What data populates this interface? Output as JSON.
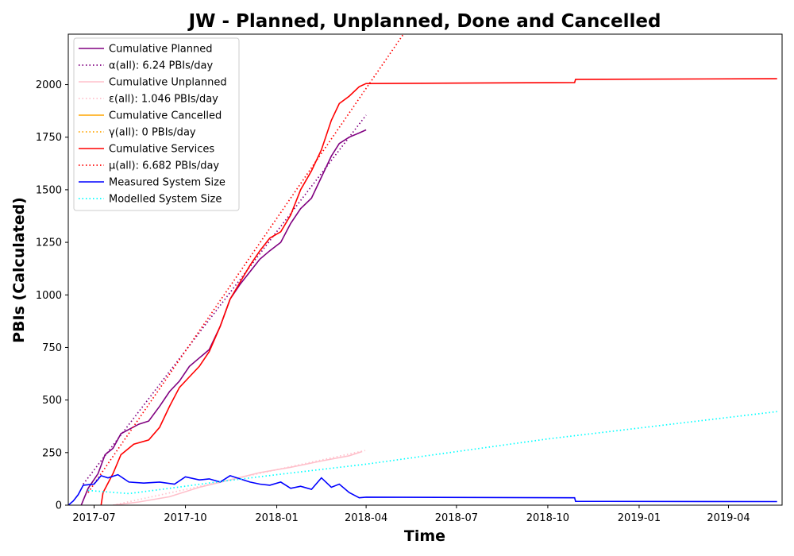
{
  "chart_data": {
    "type": "line",
    "title": "JW - Planned, Unplanned, Done  and Cancelled",
    "xlabel": "Time",
    "ylabel": "PBIs (Calculated)",
    "xlim": [
      "2017-06-05",
      "2019-05-25"
    ],
    "ylim": [
      0,
      2240
    ],
    "x_ticks": [
      "2017-07",
      "2017-10",
      "2018-01",
      "2018-04",
      "2018-07",
      "2018-10",
      "2019-01",
      "2019-04"
    ],
    "y_ticks": [
      0,
      250,
      500,
      750,
      1000,
      1250,
      1500,
      1750,
      2000
    ],
    "grid": false,
    "legend_position": "top-left",
    "series": [
      {
        "name": "Cumulative Planned",
        "color": "#800080",
        "style": "solid",
        "points": [
          [
            "2017-06-18",
            0
          ],
          [
            "2017-06-25",
            80
          ],
          [
            "2017-07-05",
            150
          ],
          [
            "2017-07-12",
            240
          ],
          [
            "2017-07-20",
            270
          ],
          [
            "2017-07-28",
            340
          ],
          [
            "2017-08-05",
            360
          ],
          [
            "2017-08-15",
            385
          ],
          [
            "2017-08-25",
            400
          ],
          [
            "2017-09-05",
            470
          ],
          [
            "2017-09-15",
            540
          ],
          [
            "2017-09-25",
            590
          ],
          [
            "2017-10-05",
            660
          ],
          [
            "2017-10-15",
            700
          ],
          [
            "2017-10-25",
            740
          ],
          [
            "2017-11-05",
            850
          ],
          [
            "2017-11-15",
            980
          ],
          [
            "2017-11-25",
            1050
          ],
          [
            "2017-12-05",
            1110
          ],
          [
            "2017-12-15",
            1170
          ],
          [
            "2017-12-25",
            1210
          ],
          [
            "2018-01-05",
            1250
          ],
          [
            "2018-01-15",
            1340
          ],
          [
            "2018-01-25",
            1410
          ],
          [
            "2018-02-05",
            1460
          ],
          [
            "2018-02-15",
            1560
          ],
          [
            "2018-02-25",
            1660
          ],
          [
            "2018-03-05",
            1720
          ],
          [
            "2018-03-15",
            1750
          ],
          [
            "2018-03-25",
            1770
          ],
          [
            "2018-04-01",
            1785
          ]
        ]
      },
      {
        "name": "α(all): 6.24 PBIs/day",
        "color": "#800080",
        "style": "dotted",
        "points": [
          [
            "2017-06-20",
            100
          ],
          [
            "2018-04-01",
            1855
          ]
        ]
      },
      {
        "name": "Cumulative Unplanned",
        "color": "#ffc0cb",
        "style": "solid",
        "points": [
          [
            "2017-07-20",
            0
          ],
          [
            "2017-08-15",
            15
          ],
          [
            "2017-09-15",
            40
          ],
          [
            "2017-10-15",
            85
          ],
          [
            "2017-11-15",
            120
          ],
          [
            "2017-12-15",
            155
          ],
          [
            "2018-01-15",
            180
          ],
          [
            "2018-02-15",
            210
          ],
          [
            "2018-03-15",
            235
          ],
          [
            "2018-03-28",
            255
          ]
        ]
      },
      {
        "name": "ε(all): 1.046 PBIs/day",
        "color": "#ffc0cb",
        "style": "dotted",
        "points": [
          [
            "2017-07-20",
            0
          ],
          [
            "2018-03-31",
            260
          ]
        ]
      },
      {
        "name": "Cumulative Cancelled",
        "color": "#ffa500",
        "style": "solid",
        "points": []
      },
      {
        "name": "γ(all): 0 PBIs/day",
        "color": "#ffa500",
        "style": "dotted",
        "points": []
      },
      {
        "name": "Cumulative Services",
        "color": "#ff0000",
        "style": "solid",
        "points": [
          [
            "2017-07-08",
            0
          ],
          [
            "2017-07-10",
            60
          ],
          [
            "2017-07-20",
            150
          ],
          [
            "2017-07-28",
            240
          ],
          [
            "2017-08-10",
            290
          ],
          [
            "2017-08-25",
            310
          ],
          [
            "2017-09-05",
            370
          ],
          [
            "2017-09-15",
            470
          ],
          [
            "2017-09-25",
            560
          ],
          [
            "2017-10-05",
            610
          ],
          [
            "2017-10-15",
            660
          ],
          [
            "2017-10-25",
            730
          ],
          [
            "2017-11-05",
            850
          ],
          [
            "2017-11-15",
            980
          ],
          [
            "2017-11-25",
            1060
          ],
          [
            "2017-12-05",
            1140
          ],
          [
            "2017-12-15",
            1210
          ],
          [
            "2017-12-25",
            1270
          ],
          [
            "2018-01-05",
            1300
          ],
          [
            "2018-01-15",
            1380
          ],
          [
            "2018-01-25",
            1500
          ],
          [
            "2018-02-05",
            1590
          ],
          [
            "2018-02-15",
            1690
          ],
          [
            "2018-02-25",
            1830
          ],
          [
            "2018-03-05",
            1910
          ],
          [
            "2018-03-15",
            1945
          ],
          [
            "2018-03-25",
            1990
          ],
          [
            "2018-04-01",
            2005
          ],
          [
            "2018-10-28",
            2010
          ],
          [
            "2018-10-29",
            2025
          ],
          [
            "2019-05-20",
            2028
          ]
        ]
      },
      {
        "name": "μ(all): 6.682 PBIs/day",
        "color": "#ff0000",
        "style": "dotted",
        "points": [
          [
            "2017-06-25",
            60
          ],
          [
            "2018-05-10",
            2250
          ]
        ]
      },
      {
        "name": "Measured System Size",
        "color": "#0000ff",
        "style": "solid",
        "points": [
          [
            "2017-06-05",
            0
          ],
          [
            "2017-06-10",
            20
          ],
          [
            "2017-06-15",
            50
          ],
          [
            "2017-06-20",
            95
          ],
          [
            "2017-07-01",
            100
          ],
          [
            "2017-07-08",
            140
          ],
          [
            "2017-07-15",
            130
          ],
          [
            "2017-07-25",
            145
          ],
          [
            "2017-08-05",
            110
          ],
          [
            "2017-08-20",
            105
          ],
          [
            "2017-09-05",
            110
          ],
          [
            "2017-09-20",
            100
          ],
          [
            "2017-10-01",
            135
          ],
          [
            "2017-10-15",
            120
          ],
          [
            "2017-10-25",
            125
          ],
          [
            "2017-11-05",
            110
          ],
          [
            "2017-11-15",
            140
          ],
          [
            "2017-11-25",
            125
          ],
          [
            "2017-12-05",
            110
          ],
          [
            "2017-12-15",
            100
          ],
          [
            "2017-12-25",
            95
          ],
          [
            "2018-01-05",
            110
          ],
          [
            "2018-01-15",
            80
          ],
          [
            "2018-01-25",
            90
          ],
          [
            "2018-02-05",
            75
          ],
          [
            "2018-02-15",
            130
          ],
          [
            "2018-02-25",
            85
          ],
          [
            "2018-03-05",
            100
          ],
          [
            "2018-03-15",
            60
          ],
          [
            "2018-03-25",
            35
          ],
          [
            "2018-04-01",
            38
          ],
          [
            "2018-10-28",
            35
          ],
          [
            "2018-10-29",
            18
          ],
          [
            "2019-05-20",
            17
          ]
        ]
      },
      {
        "name": "Modelled System Size",
        "color": "#00ffff",
        "style": "dotted",
        "points": [
          [
            "2017-06-25",
            70
          ],
          [
            "2017-08-05",
            55
          ],
          [
            "2017-09-15",
            80
          ],
          [
            "2017-11-01",
            110
          ],
          [
            "2018-01-01",
            145
          ],
          [
            "2018-04-01",
            195
          ],
          [
            "2018-10-01",
            315
          ],
          [
            "2019-05-20",
            445
          ]
        ]
      }
    ]
  }
}
